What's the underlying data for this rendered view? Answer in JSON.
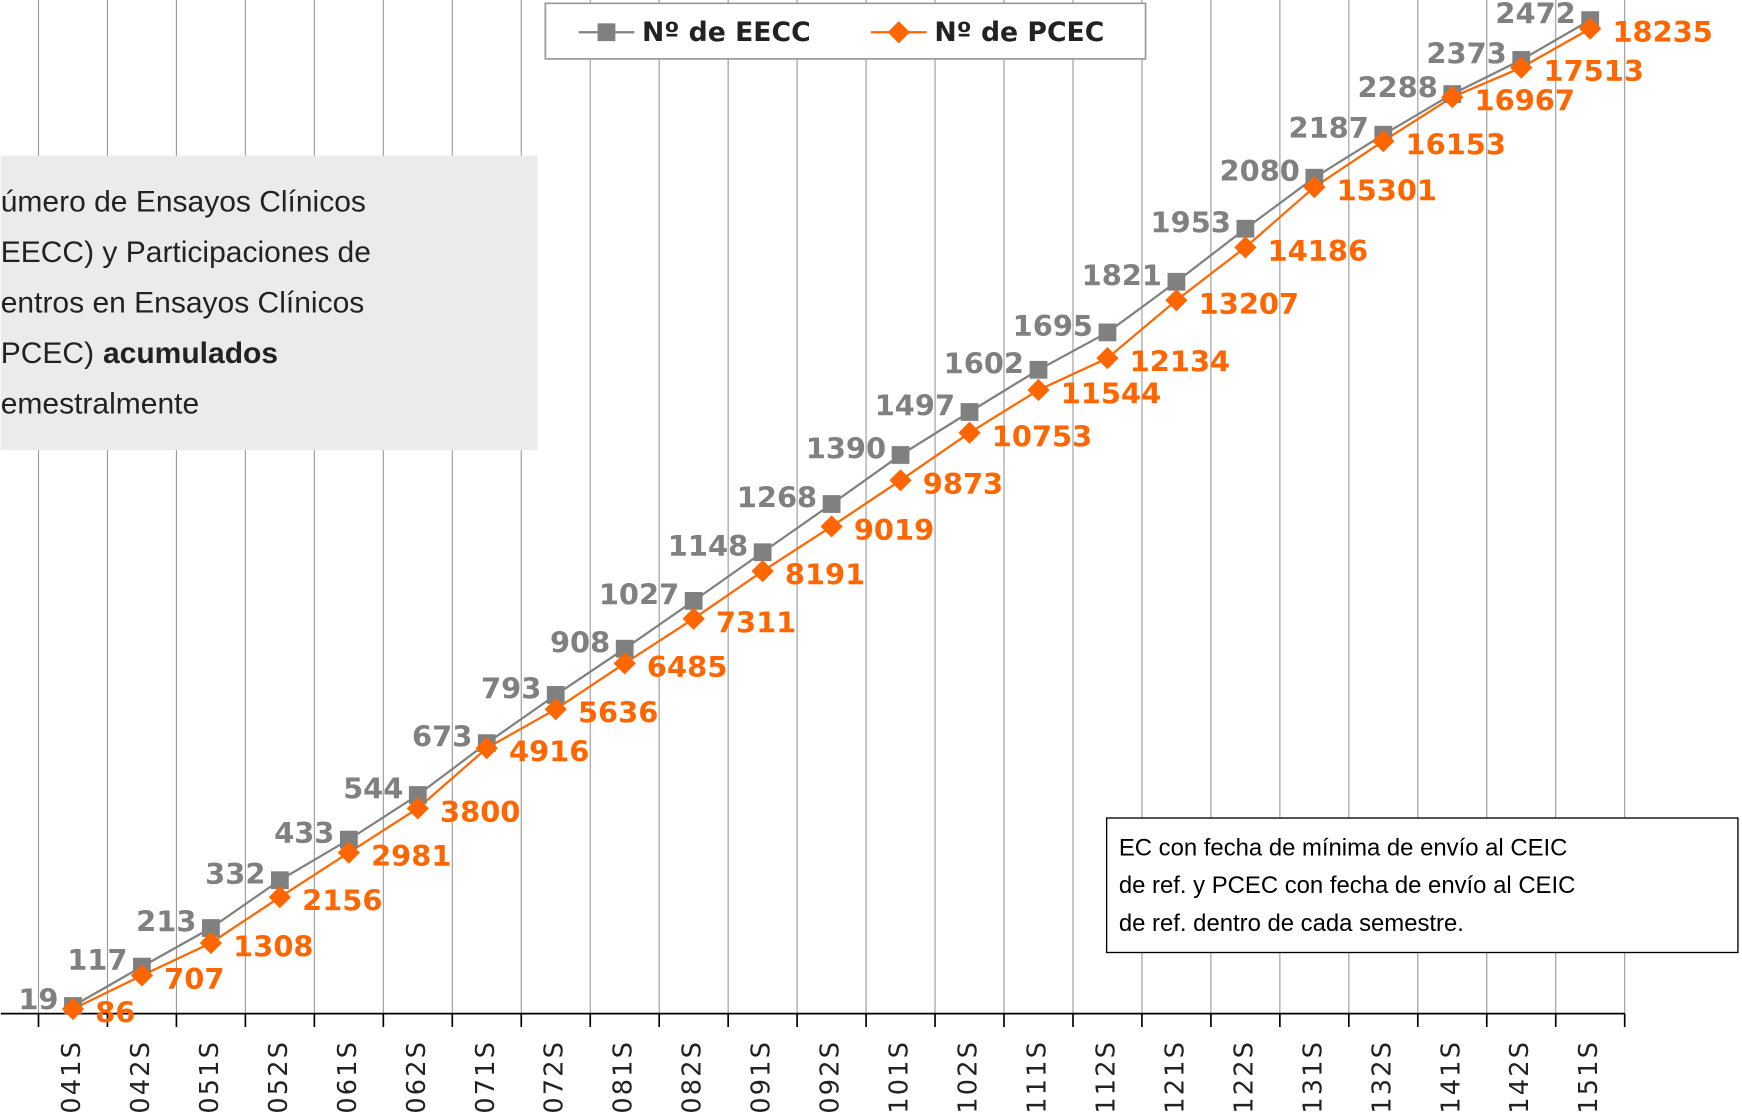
{
  "chart_data": {
    "type": "line",
    "title_lines": [
      "úmero de Ensayos Clínicos",
      "EECC) y Participaciones de",
      "entros en Ensayos Clínicos",
      "PCEC)",
      "emestralmente"
    ],
    "title_bold": "acumulados",
    "note_lines": [
      "EC con fecha de mínima de envío al CEIC",
      "de ref. y  PCEC con fecha de envío al CEIC",
      "de ref. dentro de cada semestre."
    ],
    "categories": [
      "041S",
      "042S",
      "051S",
      "052S",
      "061S",
      "062S",
      "071S",
      "072S",
      "081S",
      "082S",
      "091S",
      "092S",
      "101S",
      "102S",
      "111S",
      "112S",
      "121S",
      "122S",
      "131S",
      "132S",
      "141S",
      "142S",
      "151S"
    ],
    "series": [
      {
        "name": "Nº de EECC",
        "color": "#808080",
        "marker": "square",
        "values": [
          19,
          117,
          213,
          332,
          433,
          544,
          673,
          793,
          908,
          1027,
          1148,
          1268,
          1390,
          1497,
          1602,
          1695,
          1821,
          1953,
          2080,
          2187,
          2288,
          2373,
          2472
        ]
      },
      {
        "name": "Nº de PCEC",
        "color": "#ff6600",
        "marker": "diamond",
        "axis": "y2",
        "values": [
          86,
          707,
          1308,
          2156,
          2981,
          3800,
          4916,
          5636,
          6485,
          7311,
          8191,
          9019,
          9873,
          10753,
          11544,
          12134,
          13207,
          14186,
          15301,
          16153,
          16967,
          17513,
          18235
        ]
      }
    ],
    "ylim": [
      0,
      2500
    ],
    "y2lim": [
      0,
      18600
    ],
    "grid": true,
    "legend": "top"
  }
}
